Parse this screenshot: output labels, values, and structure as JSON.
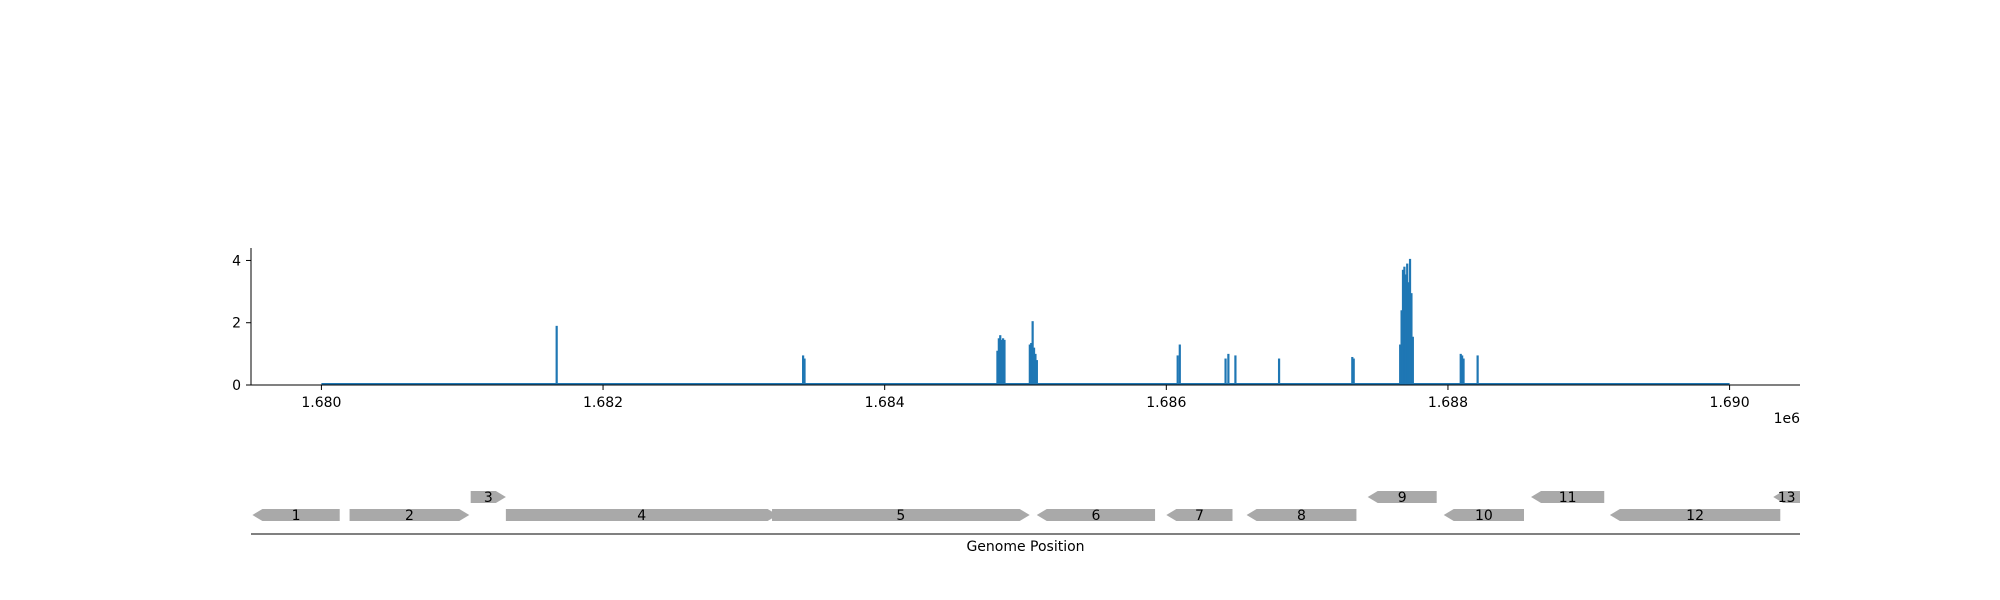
{
  "chart_data": [
    {
      "type": "bar",
      "title": "",
      "xlabel": "",
      "ylabel": "",
      "x_offset_label": "1e6",
      "xlim": [
        1679500,
        1690500
      ],
      "ylim": [
        0,
        4.4
      ],
      "x_ticks": [
        1680000,
        1682000,
        1684000,
        1686000,
        1688000,
        1690000
      ],
      "x_tick_labels": [
        "1.680",
        "1.682",
        "1.684",
        "1.686",
        "1.688",
        "1.690"
      ],
      "y_ticks": [
        0,
        2,
        4
      ],
      "y_tick_labels": [
        "0",
        "2",
        "4"
      ],
      "baseline_range": [
        1680000,
        1690000
      ],
      "color": "#1f77b4",
      "grid": false,
      "points": [
        [
          1681670,
          1.9
        ],
        [
          1683420,
          0.95
        ],
        [
          1683430,
          0.85
        ],
        [
          1684800,
          1.1
        ],
        [
          1684810,
          1.5
        ],
        [
          1684820,
          1.6
        ],
        [
          1684830,
          1.45
        ],
        [
          1684840,
          1.5
        ],
        [
          1684850,
          1.45
        ],
        [
          1685030,
          1.3
        ],
        [
          1685040,
          1.35
        ],
        [
          1685050,
          2.05
        ],
        [
          1685060,
          1.2
        ],
        [
          1685070,
          1.0
        ],
        [
          1685080,
          0.8
        ],
        [
          1686080,
          0.95
        ],
        [
          1686095,
          1.3
        ],
        [
          1686420,
          0.85
        ],
        [
          1686440,
          1.0
        ],
        [
          1686490,
          0.95
        ],
        [
          1686800,
          0.85
        ],
        [
          1687320,
          0.9
        ],
        [
          1687330,
          0.85
        ],
        [
          1687660,
          1.3
        ],
        [
          1687670,
          2.4
        ],
        [
          1687680,
          3.7
        ],
        [
          1687690,
          3.8
        ],
        [
          1687700,
          3.55
        ],
        [
          1687710,
          3.9
        ],
        [
          1687720,
          3.3
        ],
        [
          1687730,
          4.05
        ],
        [
          1687740,
          2.95
        ],
        [
          1687750,
          1.55
        ],
        [
          1688090,
          1.0
        ],
        [
          1688100,
          0.95
        ],
        [
          1688110,
          0.85
        ],
        [
          1688210,
          0.95
        ]
      ]
    },
    {
      "type": "gene-map",
      "xlabel": "Genome Position",
      "color": "#a9a9a9",
      "genes": [
        {
          "label": "1",
          "start": 1679510,
          "end": 1680130,
          "strand": "-",
          "row": 0
        },
        {
          "label": "2",
          "start": 1680200,
          "end": 1681050,
          "strand": "+",
          "row": 0
        },
        {
          "label": "3",
          "start": 1681060,
          "end": 1681310,
          "strand": "+",
          "row": 1
        },
        {
          "label": "4",
          "start": 1681310,
          "end": 1683240,
          "strand": "+",
          "row": 0
        },
        {
          "label": "5",
          "start": 1683200,
          "end": 1685030,
          "strand": "+",
          "row": 0
        },
        {
          "label": "6",
          "start": 1685080,
          "end": 1685920,
          "strand": "-",
          "row": 0
        },
        {
          "label": "7",
          "start": 1686000,
          "end": 1686470,
          "strand": "-",
          "row": 0
        },
        {
          "label": "8",
          "start": 1686570,
          "end": 1687350,
          "strand": "-",
          "row": 0
        },
        {
          "label": "9",
          "start": 1687430,
          "end": 1687920,
          "strand": "-",
          "row": 1
        },
        {
          "label": "10",
          "start": 1687970,
          "end": 1688540,
          "strand": "-",
          "row": 0
        },
        {
          "label": "11",
          "start": 1688590,
          "end": 1689110,
          "strand": "-",
          "row": 1
        },
        {
          "label": "12",
          "start": 1689150,
          "end": 1690360,
          "strand": "-",
          "row": 0
        },
        {
          "label": "13",
          "start": 1690310,
          "end": 1690500,
          "strand": "-",
          "row": 1
        }
      ]
    }
  ]
}
